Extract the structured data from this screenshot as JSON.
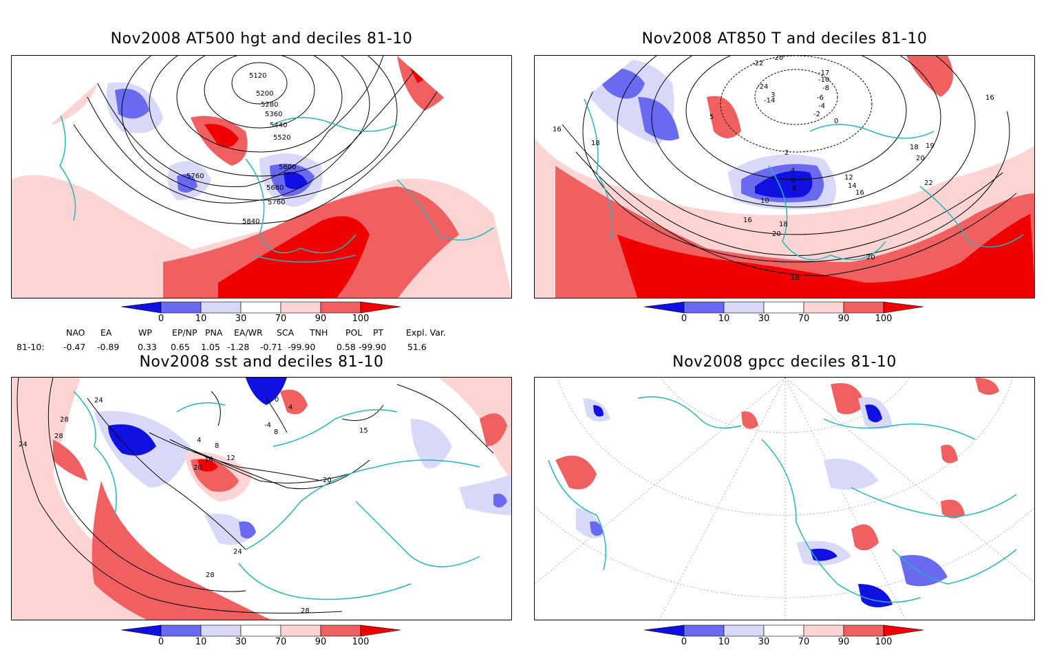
{
  "panels": [
    {
      "title": "Nov2008 AT500 hgt and deciles 81-10",
      "contour_labels": [
        "5120",
        "5200",
        "5280",
        "5360",
        "5440",
        "5520",
        "5800",
        "5760",
        "5680",
        "5760",
        "5840"
      ]
    },
    {
      "title": "Nov2008 AT850 T and deciles 81-10",
      "contour_labels": [
        "-20",
        "-22",
        "-24",
        "-17",
        "-10",
        "-8",
        "-6",
        "-4",
        "-14",
        "3",
        "-2",
        "0",
        "5",
        "16",
        "18",
        "16",
        "2",
        "4",
        "6",
        "8",
        "10",
        "12",
        "14",
        "16",
        "18",
        "19",
        "20",
        "22",
        "16",
        "18",
        "20",
        "20",
        "18"
      ]
    },
    {
      "title": "Nov2008 sst and deciles 81-10",
      "contour_labels": [
        "0",
        "4",
        "-4",
        "8",
        "4",
        "8",
        "12",
        "16",
        "20",
        "24",
        "28",
        "24",
        "28",
        "24",
        "28",
        "20",
        "15",
        "28"
      ]
    },
    {
      "title": "Nov2008 gpcc deciles 81-10",
      "contour_labels": []
    }
  ],
  "colorbar": {
    "labels": [
      "0",
      "10",
      "30",
      "70",
      "90",
      "100"
    ],
    "colors": [
      "#1010e0",
      "#6a6af0",
      "#d8d8f8",
      "#ffffff",
      "#fdd4d4",
      "#f06060",
      "#f00000"
    ]
  },
  "teleconnection": {
    "headers": [
      "NAO",
      "EA",
      "WP",
      "EP/NP",
      "PNA",
      "EA/WR",
      "SCA",
      "TNH",
      "POL",
      "PT",
      "Expl. Var."
    ],
    "row_label": "81-10:",
    "values": [
      "-0.47",
      "-0.89",
      "0.33",
      "0.65",
      "1.05",
      "-1.28",
      "-0.71",
      "-99.90",
      "0.58",
      "-99.90",
      "51.6"
    ]
  }
}
